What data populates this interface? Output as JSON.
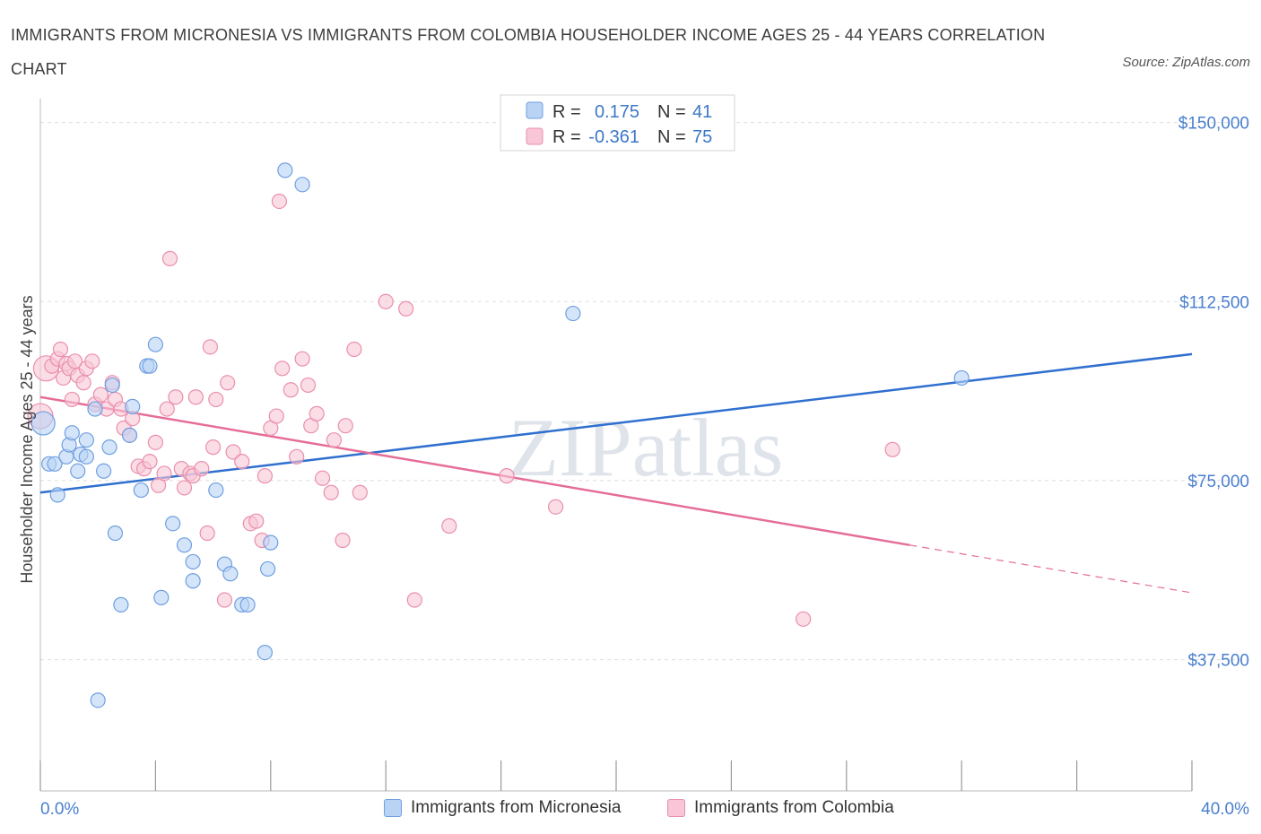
{
  "title": "IMMIGRANTS FROM MICRONESIA VS IMMIGRANTS FROM COLOMBIA HOUSEHOLDER INCOME AGES 25 - 44 YEARS CORRELATION CHART",
  "source": "Source: ZipAtlas.com",
  "watermark": "ZIPatlas",
  "colors": {
    "micronesia_fill": "#b9d3f5",
    "micronesia_stroke": "#6f9fe0",
    "micronesia_line": "#2f6fcf",
    "colombia_fill": "#f8c6d6",
    "colombia_stroke": "#ea8fae",
    "colombia_line": "#e56d99"
  },
  "legend": {
    "rows": [
      {
        "r_label": "R =",
        "r_value": "0.175",
        "n_label": "N =",
        "n_value": "41"
      },
      {
        "r_label": "R =",
        "r_value": "-0.361",
        "n_label": "N =",
        "n_value": "75"
      }
    ]
  },
  "bottom_legend": [
    "Immigrants from Micronesia",
    "Immigrants from Colombia"
  ],
  "chart_data": {
    "type": "scatter",
    "xlabel": "",
    "ylabel": "Householder Income Ages 25 - 44 years",
    "xlim": [
      0,
      40
    ],
    "ylim": [
      10000,
      155000
    ],
    "x_tick_labels": [
      "0.0%",
      "40.0%"
    ],
    "y_ticks": [
      37500,
      75000,
      112500,
      150000
    ],
    "y_tick_labels": [
      "$37,500",
      "$75,000",
      "$112,500",
      "$150,000"
    ],
    "grid": true,
    "series": [
      {
        "name": "Immigrants from Micronesia",
        "points": [
          [
            0.1,
            87000
          ],
          [
            0.3,
            78500
          ],
          [
            0.5,
            78500
          ],
          [
            0.6,
            72000
          ],
          [
            0.9,
            80000
          ],
          [
            1.0,
            82500
          ],
          [
            1.1,
            85000
          ],
          [
            1.3,
            77000
          ],
          [
            1.4,
            80500
          ],
          [
            1.6,
            83500
          ],
          [
            1.6,
            80000
          ],
          [
            1.9,
            90000
          ],
          [
            2.2,
            77000
          ],
          [
            2.4,
            82000
          ],
          [
            2.5,
            95000
          ],
          [
            2.6,
            64000
          ],
          [
            2.8,
            49000
          ],
          [
            3.1,
            84500
          ],
          [
            3.2,
            90500
          ],
          [
            3.5,
            73000
          ],
          [
            3.7,
            99000
          ],
          [
            3.8,
            99000
          ],
          [
            4.0,
            103500
          ],
          [
            4.2,
            50500
          ],
          [
            4.6,
            66000
          ],
          [
            5.0,
            61500
          ],
          [
            5.3,
            58000
          ],
          [
            5.3,
            54000
          ],
          [
            6.1,
            73000
          ],
          [
            6.4,
            57500
          ],
          [
            6.6,
            55500
          ],
          [
            7.0,
            49000
          ],
          [
            7.2,
            49000
          ],
          [
            7.8,
            39000
          ],
          [
            7.9,
            56500
          ],
          [
            8.0,
            62000
          ],
          [
            8.5,
            140000
          ],
          [
            9.1,
            137000
          ],
          [
            18.5,
            110000
          ],
          [
            32.0,
            96500
          ],
          [
            2.0,
            29000
          ]
        ]
      },
      {
        "name": "Immigrants from Colombia",
        "points": [
          [
            0.0,
            88500
          ],
          [
            0.2,
            98500
          ],
          [
            0.4,
            99000
          ],
          [
            0.6,
            100500
          ],
          [
            0.7,
            102500
          ],
          [
            0.8,
            96500
          ],
          [
            0.9,
            99500
          ],
          [
            1.0,
            98500
          ],
          [
            1.2,
            100000
          ],
          [
            1.3,
            97000
          ],
          [
            1.5,
            95500
          ],
          [
            1.6,
            98500
          ],
          [
            1.8,
            100000
          ],
          [
            1.9,
            91000
          ],
          [
            2.1,
            93000
          ],
          [
            2.3,
            90000
          ],
          [
            2.5,
            95500
          ],
          [
            2.6,
            92000
          ],
          [
            2.8,
            90000
          ],
          [
            2.9,
            86000
          ],
          [
            3.1,
            84500
          ],
          [
            3.2,
            88000
          ],
          [
            3.4,
            78000
          ],
          [
            3.6,
            77500
          ],
          [
            3.8,
            79000
          ],
          [
            4.0,
            83000
          ],
          [
            4.1,
            74000
          ],
          [
            4.3,
            76500
          ],
          [
            4.4,
            90000
          ],
          [
            4.5,
            121500
          ],
          [
            4.7,
            92500
          ],
          [
            4.9,
            77500
          ],
          [
            5.0,
            73500
          ],
          [
            5.2,
            76500
          ],
          [
            5.3,
            76000
          ],
          [
            5.4,
            92500
          ],
          [
            5.6,
            77500
          ],
          [
            5.8,
            64000
          ],
          [
            5.9,
            103000
          ],
          [
            6.0,
            82000
          ],
          [
            6.1,
            92000
          ],
          [
            6.4,
            50000
          ],
          [
            6.5,
            95500
          ],
          [
            6.7,
            81000
          ],
          [
            7.0,
            79000
          ],
          [
            7.3,
            66000
          ],
          [
            7.5,
            66500
          ],
          [
            7.7,
            62500
          ],
          [
            7.8,
            76000
          ],
          [
            8.0,
            86000
          ],
          [
            8.2,
            88500
          ],
          [
            8.3,
            133500
          ],
          [
            8.4,
            98500
          ],
          [
            8.7,
            94000
          ],
          [
            8.9,
            80000
          ],
          [
            9.1,
            100500
          ],
          [
            9.3,
            95000
          ],
          [
            9.4,
            86500
          ],
          [
            9.6,
            89000
          ],
          [
            9.8,
            75500
          ],
          [
            10.1,
            72500
          ],
          [
            10.2,
            83500
          ],
          [
            10.5,
            62500
          ],
          [
            10.6,
            86500
          ],
          [
            10.9,
            102500
          ],
          [
            11.1,
            72500
          ],
          [
            12.0,
            112500
          ],
          [
            12.7,
            111000
          ],
          [
            13.0,
            50000
          ],
          [
            14.2,
            65500
          ],
          [
            16.2,
            76000
          ],
          [
            17.9,
            69500
          ],
          [
            26.5,
            46000
          ],
          [
            29.6,
            81500
          ],
          [
            1.1,
            92000
          ]
        ]
      }
    ],
    "trend_lines": [
      {
        "series": "Immigrants from Micronesia",
        "x": [
          0,
          40
        ],
        "y": [
          72500,
          101500
        ]
      },
      {
        "series": "Immigrants from Colombia",
        "x": [
          0,
          30.2
        ],
        "y": [
          92500,
          61500
        ],
        "dashed_to": [
          40,
          51500
        ]
      }
    ]
  }
}
